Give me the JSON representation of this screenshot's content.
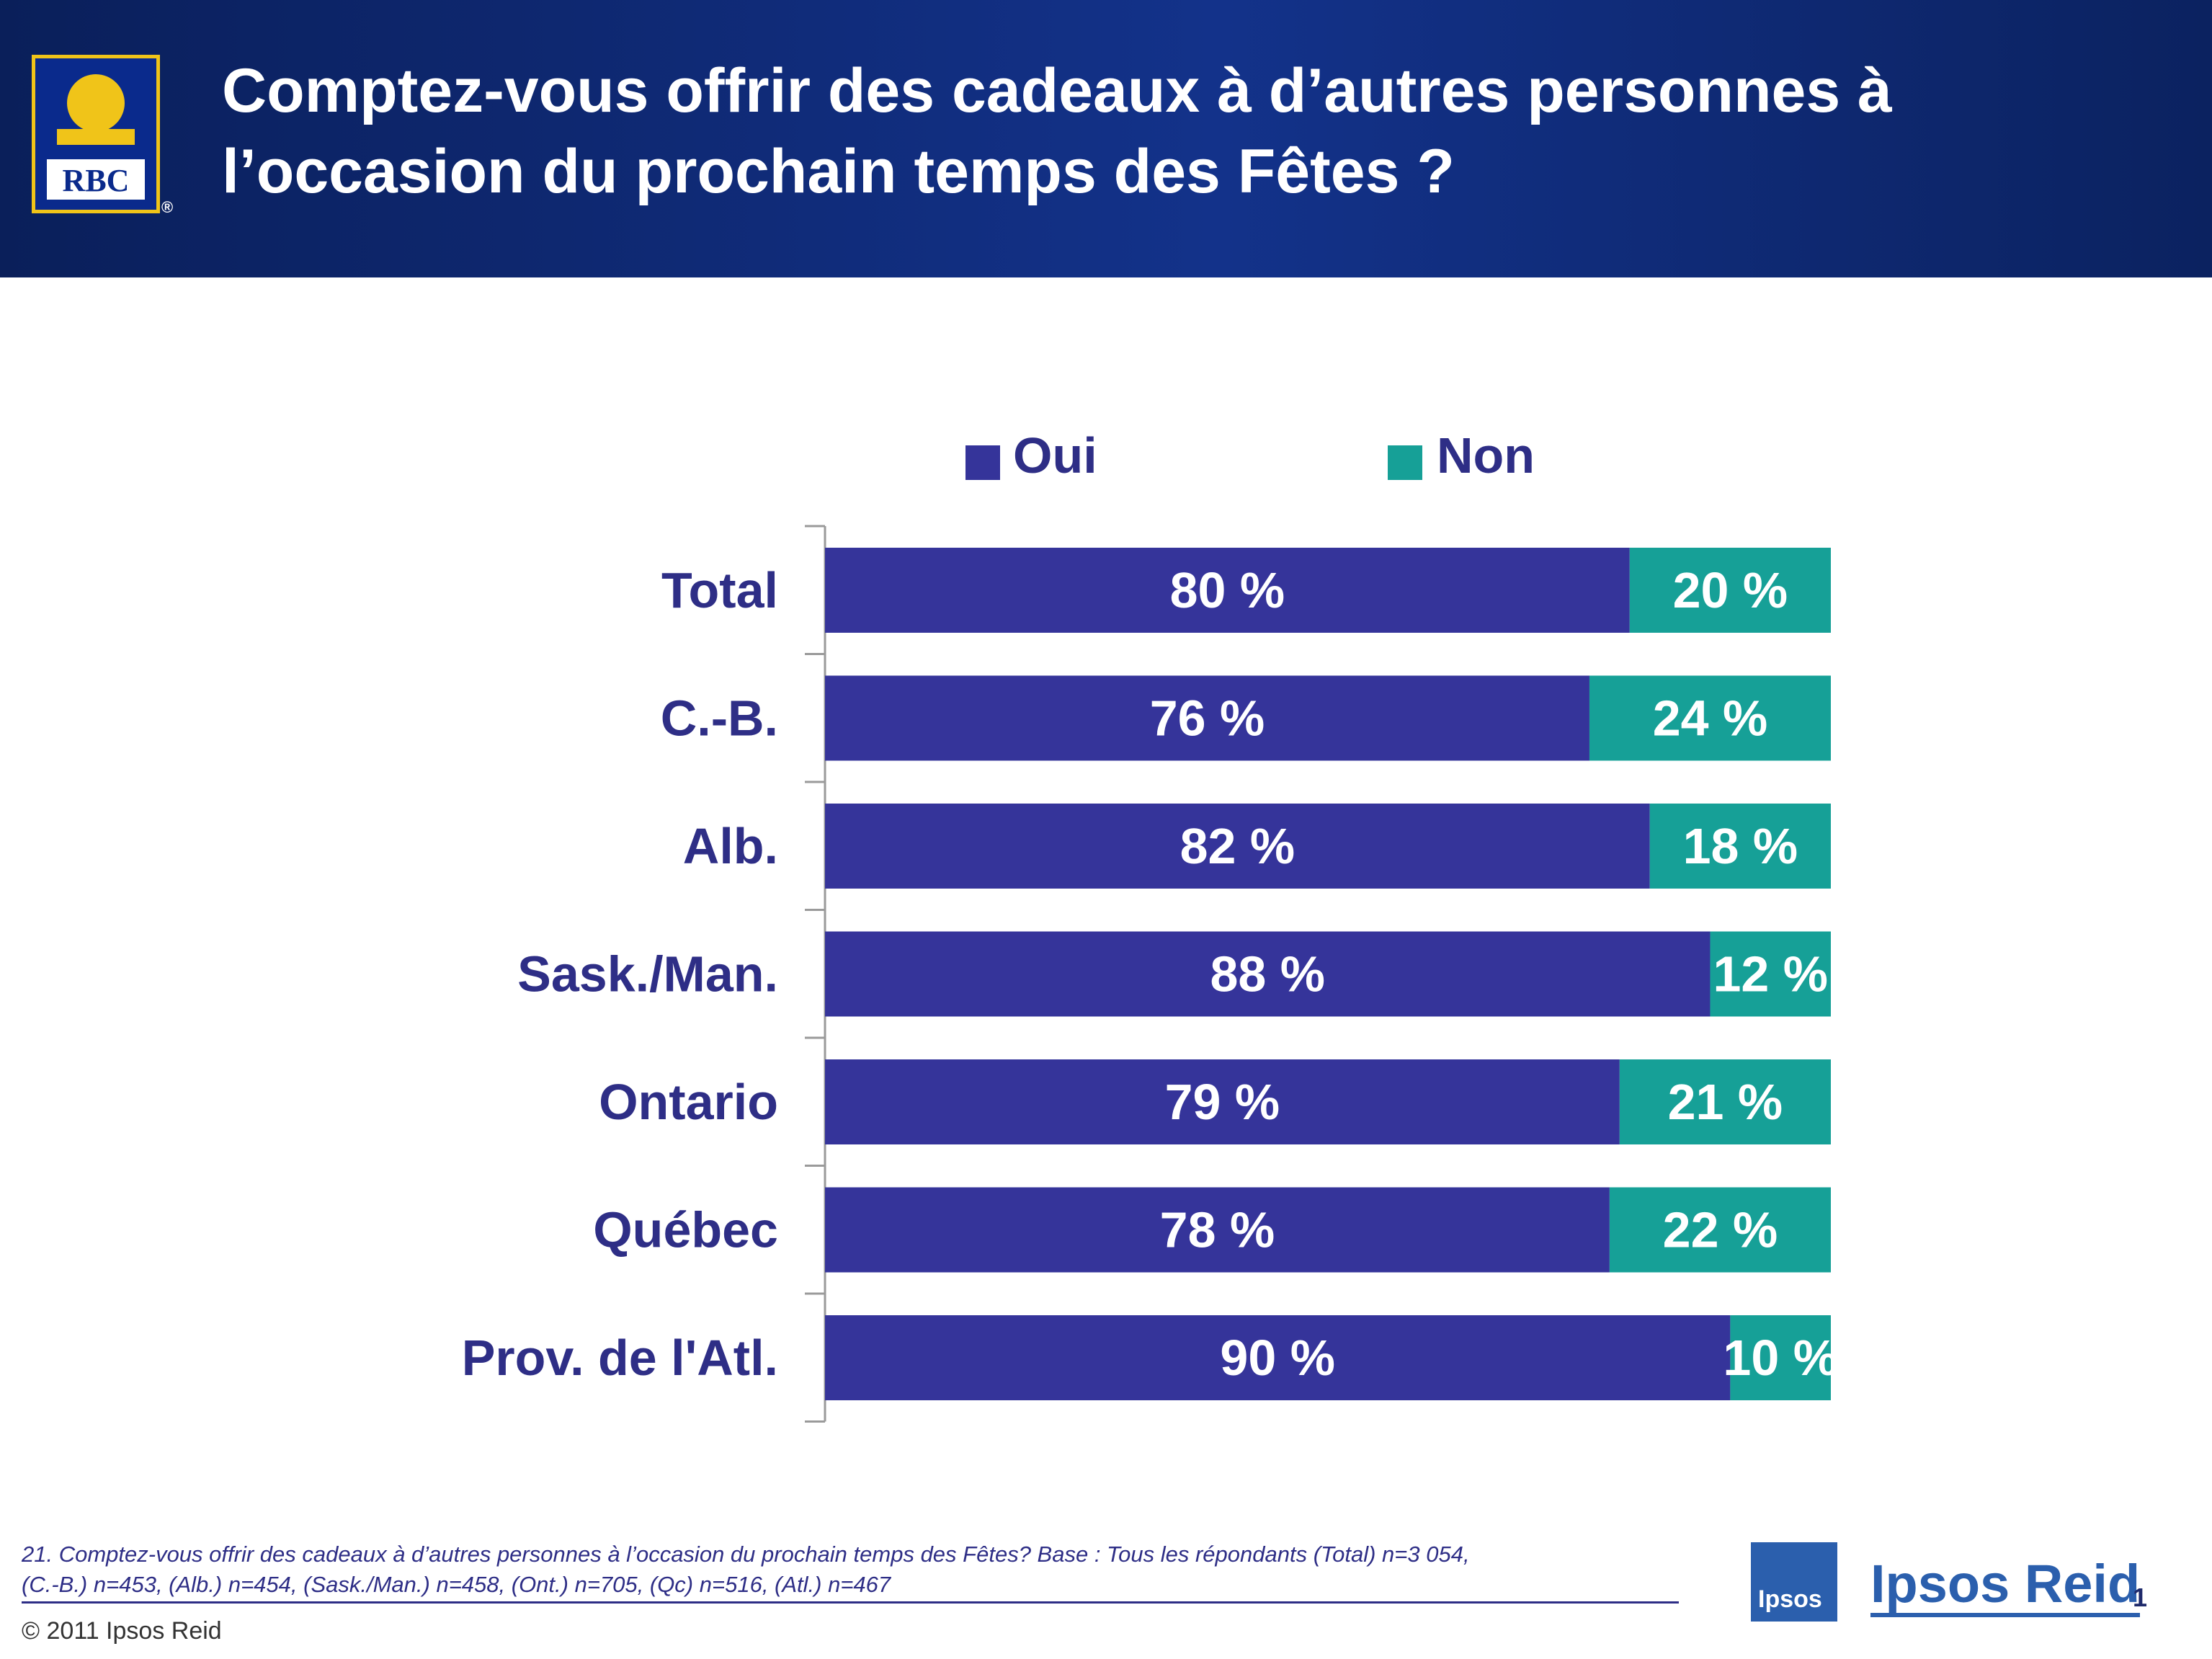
{
  "header": {
    "title": "Comptez-vous offrir des cadeaux à d’autres personnes à l’occasion du prochain temps des Fêtes ?",
    "logo_text": "RBC",
    "logo_mark": "®"
  },
  "colors": {
    "oui": "#35349a",
    "non": "#16a097",
    "label": "#2e2e86",
    "axis": "#9a9a9a"
  },
  "legend": {
    "oui": "Oui",
    "non": "Non"
  },
  "chart_data": {
    "type": "bar",
    "orientation": "horizontal",
    "stacked": true,
    "categories": [
      "Total",
      "C.-B.",
      "Alb.",
      "Sask./Man.",
      "Ontario",
      "Québec",
      "Prov. de l'Atl."
    ],
    "series": [
      {
        "name": "Oui",
        "values": [
          80,
          76,
          82,
          88,
          79,
          78,
          90
        ]
      },
      {
        "name": "Non",
        "values": [
          20,
          24,
          18,
          12,
          21,
          22,
          10
        ]
      }
    ],
    "value_suffix": " %",
    "xlim": [
      0,
      100
    ],
    "legend_position": "top",
    "grid": false
  },
  "footnote": {
    "line1": "21. Comptez-vous offrir des cadeaux à d’autres personnes à l’occasion du prochain temps des Fêtes?  Base : Tous les répondants  (Total) n=3 054,",
    "line2": "(C.-B.) n=453, (Alb.) n=454, (Sask./Man.) n=458, (Ont.) n=705, (Qc) n=516, (Atl.) n=467"
  },
  "footer": {
    "copyright": "© 2011 Ipsos Reid",
    "ipsos_box": "Ipsos",
    "brand": "Ipsos Reid",
    "page_number": "1"
  }
}
